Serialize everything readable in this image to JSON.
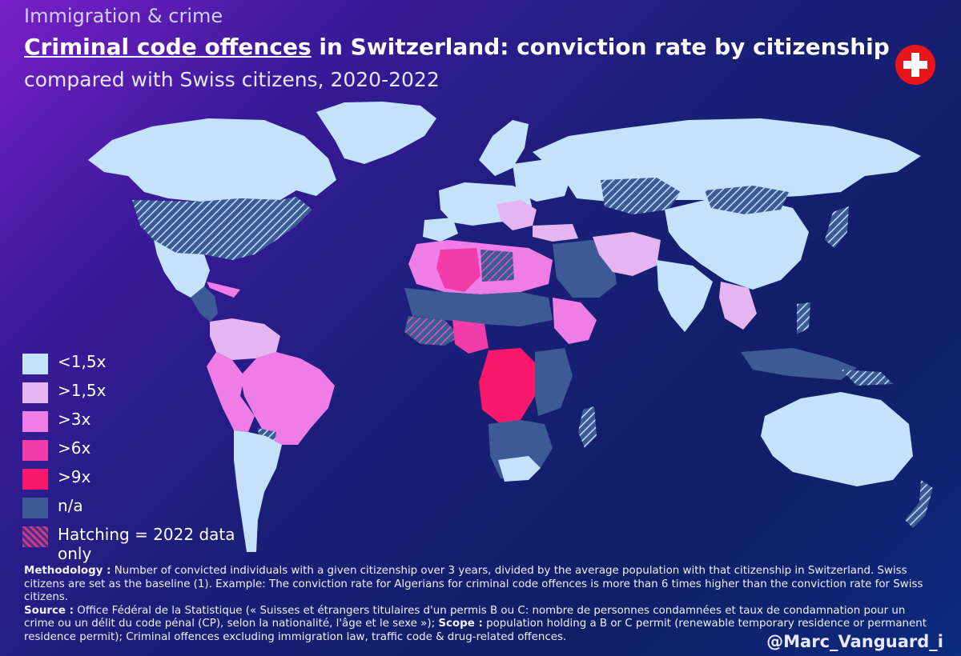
{
  "kicker": "Immigration & crime",
  "title_emphasis": "Criminal code offences",
  "title_rest": " in Switzerland: conviction rate by citizenship",
  "subtitle": "compared with Swiss citizens, 2020-2022",
  "flag_icon": "swiss-flag-icon",
  "colors": {
    "lt_1_5": "#c4e2fb",
    "gt_1_5": "#e6b4f0",
    "gt_3": "#f07ce8",
    "gt_6": "#f23ca8",
    "gt_9": "#f8186c",
    "na": "#3c5a96",
    "hatch": "#b54a9c"
  },
  "legend": [
    {
      "key": "lt_1_5",
      "label": "<1,5x"
    },
    {
      "key": "gt_1_5",
      "label": ">1,5x"
    },
    {
      "key": "gt_3",
      "label": ">3x"
    },
    {
      "key": "gt_6",
      "label": ">6x"
    },
    {
      "key": "gt_9",
      "label": ">9x"
    },
    {
      "key": "na",
      "label": "n/a"
    },
    {
      "key": "hatch",
      "label": "Hatching = 2022 data only"
    }
  ],
  "notes": {
    "methodology_label": "Methodology :",
    "methodology_text": " Number of convicted individuals with a given citizenship over 3 years, divided by the average population with that citizenship in Switzerland. Swiss citizens are set as the baseline (1). Example: The conviction rate for Algerians for criminal code offences is more than 6 times higher than the conviction rate for Swiss citizens.",
    "source_label": "Source :",
    "source_text": " Office Fédéral de la Statistique (« Suisses et étrangers titulaires d'un permis B ou C: nombre de personnes condamnées et taux de condamnation pour un crime ou un délit du code pénal (CP), selon la nationalité, l'âge et le sexe »); ",
    "scope_label": "Scope :",
    "scope_text": " population holding a B or C permit (renewable temporary residence or permanent residence permit); Criminal offences excluding immigration law, traffic code & drug-related offences."
  },
  "credit": "@Marc_Vanguard_i"
}
